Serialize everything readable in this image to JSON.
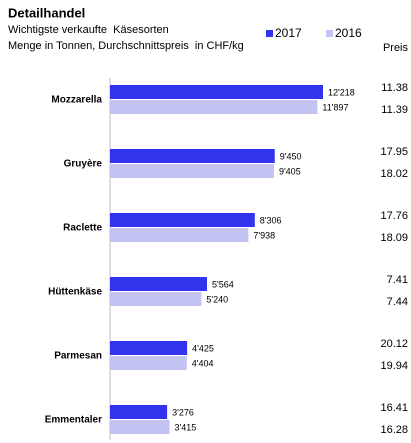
{
  "chart_data": {
    "type": "bar",
    "orientation": "horizontal",
    "title": "Detailhandel",
    "subtitle": "Wichtigste verkaufte  Käsesorten",
    "note": "Menge in Tonnen, Durchschnittspreis  in CHF/kg",
    "price_header": "Preis",
    "categories": [
      "Mozzarella",
      "Gruyère",
      "Raclette",
      "Hüttenkäse",
      "Parmesan",
      "Emmentaler"
    ],
    "series": [
      {
        "name": "2017",
        "color": "#3333ee",
        "values": [
          12218,
          9450,
          8306,
          5564,
          4425,
          3276
        ],
        "value_labels": [
          "12'218",
          "9'450",
          "8'306",
          "5'564",
          "4'425",
          "3'276"
        ],
        "prices": [
          11.38,
          17.95,
          17.76,
          7.41,
          20.12,
          16.41
        ]
      },
      {
        "name": "2016",
        "color": "#c4c4f4",
        "values": [
          11897,
          9405,
          7938,
          5240,
          4404,
          3415
        ],
        "value_labels": [
          "11'897",
          "9'405",
          "7'938",
          "5'240",
          "4'404",
          "3'415"
        ],
        "prices": [
          11.39,
          18.02,
          18.09,
          7.44,
          19.94,
          16.28
        ]
      }
    ]
  }
}
